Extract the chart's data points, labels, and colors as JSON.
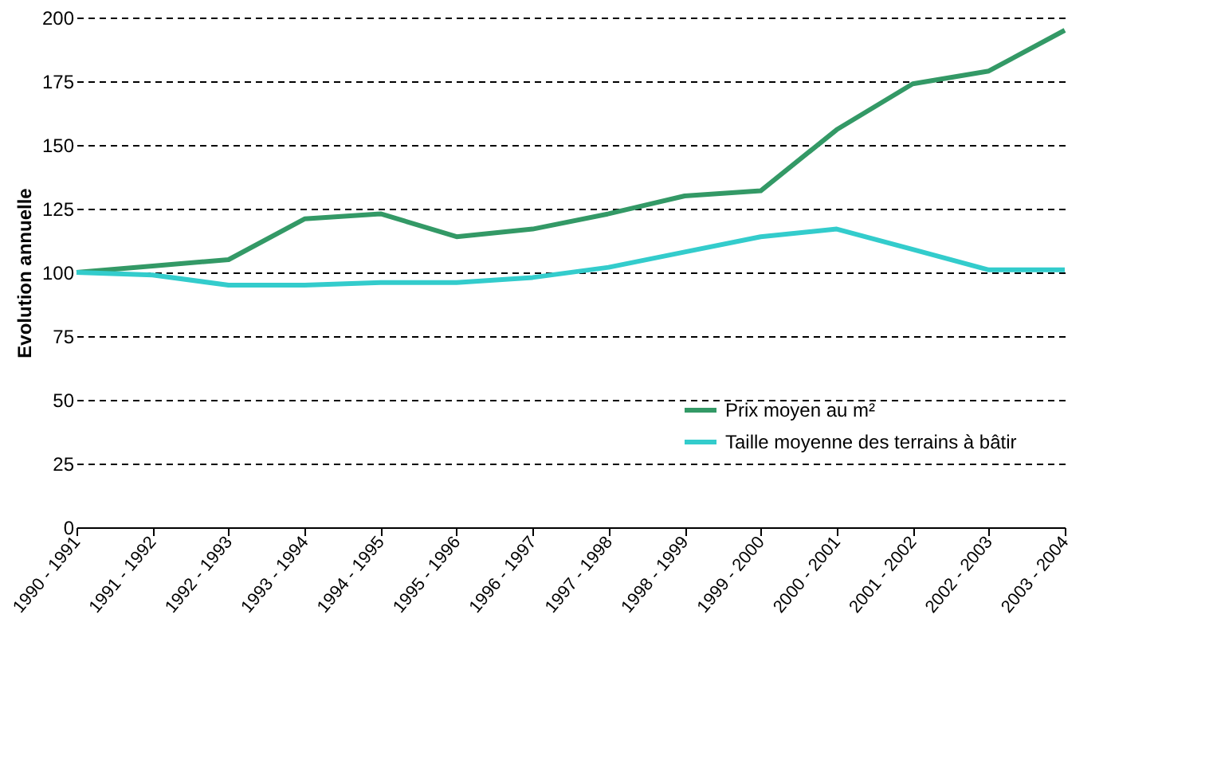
{
  "chart_data": {
    "type": "line",
    "ylabel": "Evolution annuelle",
    "categories": [
      "1990 - 1991",
      "1991 - 1992",
      "1992 - 1993",
      "1993 - 1994",
      "1994 - 1995",
      "1995 - 1996",
      "1996 - 1997",
      "1997 - 1998",
      "1998 - 1999",
      "1999 - 2000",
      "2000 - 2001",
      "2001 - 2002",
      "2002 - 2003",
      "2003 - 2004"
    ],
    "series": [
      {
        "name": "Prix moyen au m²",
        "color": "#339966",
        "values": [
          100,
          102.5,
          105,
          121,
          123,
          114,
          117,
          123,
          130,
          132,
          156,
          174,
          179,
          195
        ]
      },
      {
        "name": "Taille moyenne des terrains à bâtir",
        "color": "#33cccc",
        "values": [
          100,
          99,
          95,
          95,
          96,
          96,
          98,
          102,
          108,
          114,
          117,
          109,
          101,
          101
        ]
      }
    ],
    "ylim": [
      0,
      200
    ],
    "yticks": [
      0,
      25,
      50,
      75,
      100,
      125,
      150,
      175,
      200
    ],
    "grid": "y",
    "legend": "right",
    "marker": "none",
    "line_style": "solid"
  }
}
